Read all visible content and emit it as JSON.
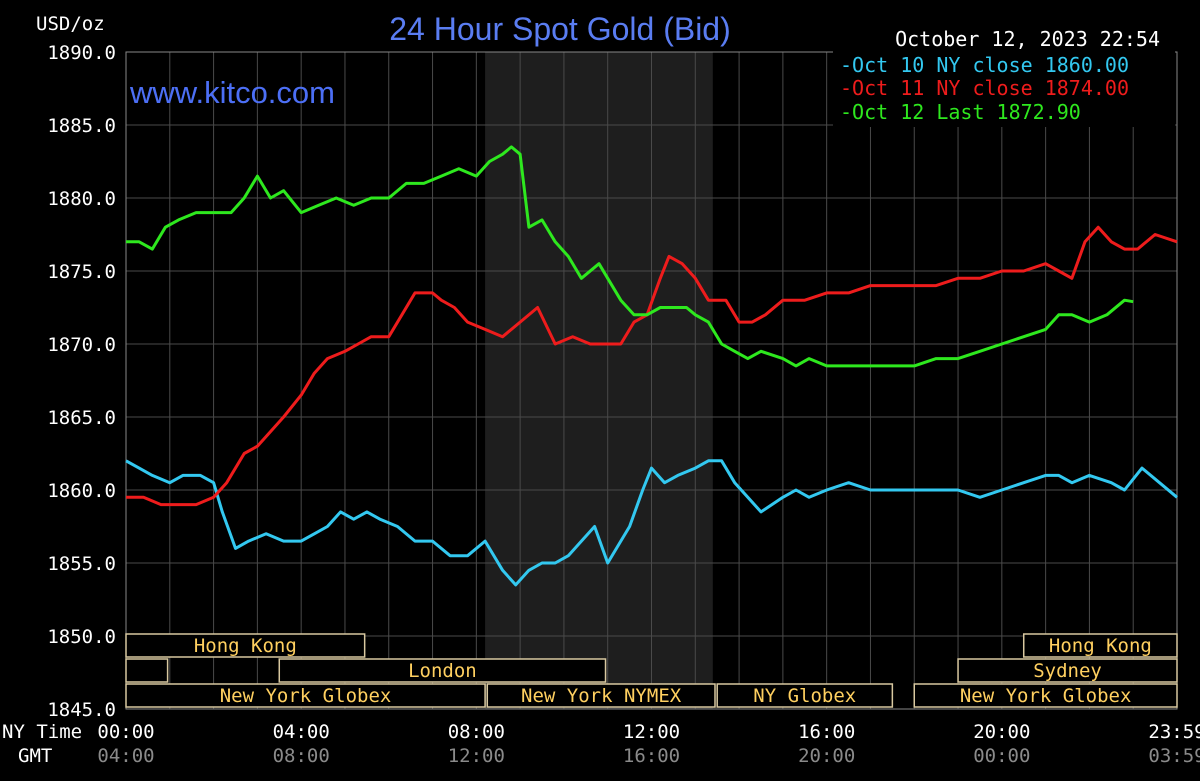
{
  "chart_data": {
    "type": "line",
    "title": "24 Hour Spot Gold (Bid)",
    "watermark": "www.kitco.com",
    "timestamp": "October 12, 2023 22:54",
    "ylabel": "USD/oz",
    "ylim": [
      1845,
      1890
    ],
    "yticks": [
      "1890.0",
      "1885.0",
      "1880.0",
      "1875.0",
      "1870.0",
      "1865.0",
      "1860.0",
      "1855.0",
      "1850.0",
      "1845.0"
    ],
    "ytick_values": [
      1890,
      1885,
      1880,
      1875,
      1870,
      1865,
      1860,
      1855,
      1850,
      1845
    ],
    "xlim": [
      0,
      24
    ],
    "xtick_positions": [
      0,
      4,
      8,
      12,
      16,
      20,
      24
    ],
    "ny_time_label": "NY Time",
    "gmt_label": "GMT",
    "ny_time_ticks": [
      "00:00",
      "04:00",
      "08:00",
      "12:00",
      "16:00",
      "20:00",
      "23:59"
    ],
    "gmt_ticks": [
      "04:00",
      "08:00",
      "12:00",
      "16:00",
      "20:00",
      "00:00",
      "03:59"
    ],
    "shaded_region": [
      8.2,
      13.4
    ],
    "grid": true,
    "legend_position": "top-right",
    "colors": {
      "background": "#000000",
      "grid": "#4a4a4a",
      "title": "#5a7df2",
      "text": "#ffffff",
      "session": "#ffd060",
      "shade": "#1e1e1e"
    },
    "series": [
      {
        "name": "Oct 10 NY close 1860.00",
        "color": "#33c8f0",
        "x": [
          0,
          0.3,
          0.6,
          1,
          1.3,
          1.7,
          2,
          2.2,
          2.5,
          2.8,
          3.2,
          3.6,
          4,
          4.3,
          4.6,
          4.9,
          5.2,
          5.5,
          5.8,
          6.2,
          6.6,
          7,
          7.4,
          7.8,
          8.2,
          8.6,
          8.9,
          9.2,
          9.5,
          9.8,
          10.1,
          10.4,
          10.7,
          11,
          11.3,
          11.5,
          11.8,
          12,
          12.3,
          12.6,
          13,
          13.3,
          13.6,
          13.9,
          14.2,
          14.5,
          15,
          15.3,
          15.6,
          16,
          16.5,
          17,
          17.5,
          18,
          18.5,
          19,
          19.5,
          20,
          20.5,
          21,
          21.3,
          21.6,
          22,
          22.5,
          22.8,
          23.2,
          23.6,
          24
        ],
        "values": [
          1862,
          1861.5,
          1861,
          1860.5,
          1861,
          1861,
          1860.5,
          1858.5,
          1856,
          1856.5,
          1857,
          1856.5,
          1856.5,
          1857,
          1857.5,
          1858.5,
          1858,
          1858.5,
          1858,
          1857.5,
          1856.5,
          1856.5,
          1855.5,
          1855.5,
          1856.5,
          1854.5,
          1853.5,
          1854.5,
          1855,
          1855,
          1855.5,
          1856.5,
          1857.5,
          1855,
          1856.5,
          1857.5,
          1860,
          1861.5,
          1860.5,
          1861,
          1861.5,
          1862,
          1862,
          1860.5,
          1859.5,
          1858.5,
          1859.5,
          1860,
          1859.5,
          1860,
          1860.5,
          1860,
          1860,
          1860,
          1860,
          1860,
          1859.5,
          1860,
          1860.5,
          1861,
          1861,
          1860.5,
          1861,
          1860.5,
          1860,
          1861.5,
          1860.5,
          1859.5
        ]
      },
      {
        "name": "Oct 11 NY close 1874.00",
        "color": "#ee1c1c",
        "x": [
          0,
          0.4,
          0.8,
          1.2,
          1.6,
          2,
          2.3,
          2.7,
          3,
          3.3,
          3.6,
          4,
          4.3,
          4.6,
          5,
          5.3,
          5.6,
          6,
          6.3,
          6.6,
          7,
          7.2,
          7.5,
          7.8,
          8.2,
          8.6,
          9,
          9.4,
          9.8,
          10.2,
          10.6,
          11,
          11.3,
          11.6,
          11.9,
          12.2,
          12.4,
          12.7,
          13,
          13.3,
          13.7,
          14,
          14.3,
          14.6,
          15,
          15.5,
          16,
          16.5,
          17,
          17.5,
          18,
          18.5,
          19,
          19.5,
          20,
          20.5,
          21,
          21.3,
          21.6,
          21.9,
          22.2,
          22.5,
          22.8,
          23.1,
          23.5,
          24
        ],
        "values": [
          1859.5,
          1859.5,
          1859,
          1859,
          1859,
          1859.5,
          1860.5,
          1862.5,
          1863,
          1864,
          1865,
          1866.5,
          1868,
          1869,
          1869.5,
          1870,
          1870.5,
          1870.5,
          1872,
          1873.5,
          1873.5,
          1873,
          1872.5,
          1871.5,
          1871,
          1870.5,
          1871.5,
          1872.5,
          1870,
          1870.5,
          1870,
          1870,
          1870,
          1871.5,
          1872,
          1874.5,
          1876,
          1875.5,
          1874.5,
          1873,
          1873,
          1871.5,
          1871.5,
          1872,
          1873,
          1873,
          1873.5,
          1873.5,
          1874,
          1874,
          1874,
          1874,
          1874.5,
          1874.5,
          1875,
          1875,
          1875.5,
          1875,
          1874.5,
          1877,
          1878,
          1877,
          1876.5,
          1876.5,
          1877.5,
          1877
        ]
      },
      {
        "name": "Oct 12 Last 1872.90",
        "color": "#2ee81e",
        "x": [
          0,
          0.3,
          0.6,
          0.9,
          1.2,
          1.6,
          2,
          2.4,
          2.7,
          3,
          3.3,
          3.6,
          4,
          4.4,
          4.8,
          5.2,
          5.6,
          6,
          6.4,
          6.8,
          7.2,
          7.6,
          8,
          8.3,
          8.6,
          8.8,
          9,
          9.2,
          9.5,
          9.8,
          10.1,
          10.4,
          10.8,
          11,
          11.3,
          11.6,
          11.9,
          12.2,
          12.5,
          12.8,
          13,
          13.3,
          13.6,
          13.9,
          14.2,
          14.5,
          15,
          15.3,
          15.6,
          16,
          16.5,
          17,
          17.5,
          18,
          18.5,
          19,
          19.5,
          20,
          20.5,
          21,
          21.3,
          21.6,
          22,
          22.4,
          22.8,
          23
        ],
        "values": [
          1877,
          1877,
          1876.5,
          1878,
          1878.5,
          1879,
          1879,
          1879,
          1880,
          1881.5,
          1880,
          1880.5,
          1879,
          1879.5,
          1880,
          1879.5,
          1880,
          1880,
          1881,
          1881,
          1881.5,
          1882,
          1881.5,
          1882.5,
          1883,
          1883.5,
          1883,
          1878,
          1878.5,
          1877,
          1876,
          1874.5,
          1875.5,
          1874.5,
          1873,
          1872,
          1872,
          1872.5,
          1872.5,
          1872.5,
          1872,
          1871.5,
          1870,
          1869.5,
          1869,
          1869.5,
          1869,
          1868.5,
          1869,
          1868.5,
          1868.5,
          1868.5,
          1868.5,
          1868.5,
          1869,
          1869,
          1869.5,
          1870,
          1870.5,
          1871,
          1872,
          1872,
          1871.5,
          1872,
          1873,
          1872.9
        ]
      }
    ],
    "sessions": [
      {
        "label": "Hong Kong",
        "row": 0,
        "start": 0,
        "end": 5.45
      },
      {
        "label": "",
        "row": 1,
        "start": 0,
        "end": 0.95
      },
      {
        "label": "London",
        "row": 1,
        "start": 3.5,
        "end": 10.95
      },
      {
        "label": "New York Globex",
        "row": 2,
        "start": 0,
        "end": 8.2
      },
      {
        "label": "New York NYMEX",
        "row": 2,
        "start": 8.25,
        "end": 13.45
      },
      {
        "label": "NY Globex",
        "row": 2,
        "start": 13.5,
        "end": 17.5
      },
      {
        "label": "Hong Kong",
        "row": 0,
        "start": 20.5,
        "end": 24
      },
      {
        "label": "Sydney",
        "row": 1,
        "start": 19,
        "end": 24
      },
      {
        "label": "New York Globex",
        "row": 2,
        "start": 18,
        "end": 24
      }
    ]
  }
}
